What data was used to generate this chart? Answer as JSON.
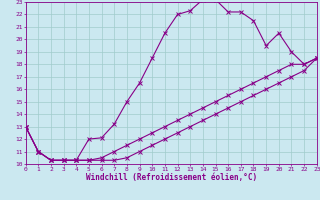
{
  "title": "",
  "xlabel": "Windchill (Refroidissement éolien,°C)",
  "bg_color": "#cbe8f0",
  "grid_color": "#a0cccc",
  "line_color": "#880088",
  "xlim": [
    0,
    23
  ],
  "ylim": [
    10,
    23
  ],
  "xticks": [
    0,
    1,
    2,
    3,
    4,
    5,
    6,
    7,
    8,
    9,
    10,
    11,
    12,
    13,
    14,
    15,
    16,
    17,
    18,
    19,
    20,
    21,
    22,
    23
  ],
  "yticks": [
    10,
    11,
    12,
    13,
    14,
    15,
    16,
    17,
    18,
    19,
    20,
    21,
    22,
    23
  ],
  "line1_x": [
    0,
    1,
    2,
    3,
    4,
    5,
    6,
    7,
    8,
    9,
    10,
    11,
    12,
    13,
    14,
    15,
    16,
    17,
    18,
    19,
    20,
    21,
    22,
    23
  ],
  "line1_y": [
    13,
    11,
    10.3,
    10.3,
    10.3,
    12,
    12.1,
    13.2,
    15,
    16.5,
    18.5,
    20.5,
    22,
    22.3,
    23.2,
    23.2,
    22.2,
    22.2,
    21.5,
    19.5,
    20.5,
    19,
    18,
    18.5
  ],
  "line2_x": [
    0,
    1,
    2,
    3,
    4,
    5,
    6,
    7,
    8,
    9,
    10,
    11,
    12,
    13,
    14,
    15,
    16,
    17,
    18,
    19,
    20,
    21,
    22,
    23
  ],
  "line2_y": [
    13,
    11,
    10.3,
    10.3,
    10.3,
    10.3,
    10.3,
    10.3,
    10.5,
    11,
    11.5,
    12,
    12.5,
    13,
    13.5,
    14,
    14.5,
    15,
    15.5,
    16,
    16.5,
    17,
    17.5,
    18.5
  ],
  "line3_x": [
    0,
    1,
    2,
    3,
    4,
    5,
    6,
    7,
    8,
    9,
    10,
    11,
    12,
    13,
    14,
    15,
    16,
    17,
    18,
    19,
    20,
    21,
    22,
    23
  ],
  "line3_y": [
    13,
    11,
    10.3,
    10.3,
    10.3,
    10.3,
    10.5,
    11,
    11.5,
    12,
    12.5,
    13,
    13.5,
    14,
    14.5,
    15,
    15.5,
    16,
    16.5,
    17,
    17.5,
    18,
    18,
    18.5
  ],
  "marker": "x",
  "markersize": 2.5,
  "linewidth": 0.8,
  "tick_fontsize": 4.5,
  "label_fontsize": 5.5
}
